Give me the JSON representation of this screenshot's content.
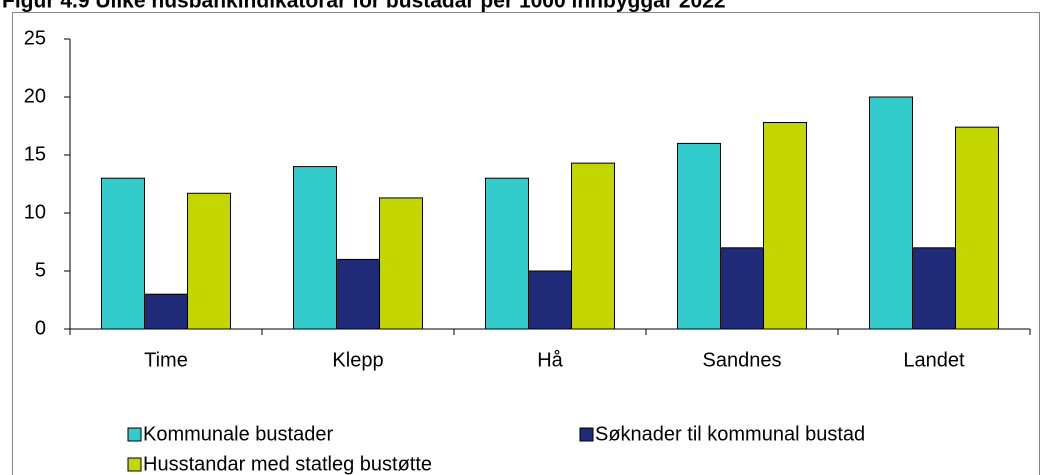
{
  "chart_data": {
    "type": "bar",
    "title": "Figur 4.9 Ulike husbankindikatorar for bustadar per 1000 innbyggar 2022",
    "categories": [
      "Time",
      "Klepp",
      "Hå",
      "Sandnes",
      "Landet"
    ],
    "series": [
      {
        "name": "Kommunale bustader",
        "color": "#33CCCC",
        "values": [
          13,
          14,
          13,
          16,
          20
        ]
      },
      {
        "name": "Søknader til kommunal bustad",
        "color": "#1F2A78",
        "values": [
          3,
          6,
          5,
          7,
          7
        ]
      },
      {
        "name": "Husstandar med statleg bustøtte",
        "color": "#C3D600",
        "values": [
          11.7,
          11.3,
          14.3,
          17.8,
          17.4
        ]
      }
    ],
    "ylim": [
      0,
      25
    ],
    "yticks": [
      0,
      5,
      10,
      15,
      20,
      25
    ],
    "grid": false,
    "legend": "bottom"
  }
}
